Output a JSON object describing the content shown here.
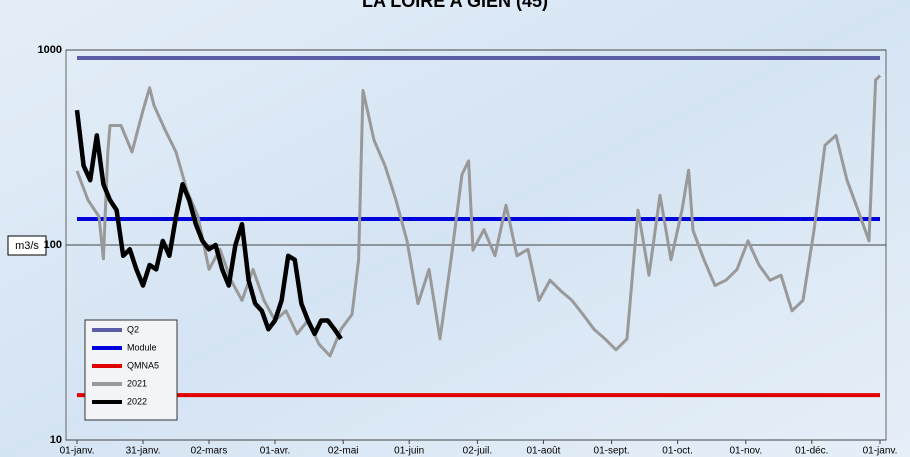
{
  "chart_data": {
    "type": "line",
    "title": "LA LOIRE A GIEN (45)",
    "ylabel": "m3/s",
    "log_y": true,
    "grid": true,
    "legend": "lower left",
    "xlim": [
      0,
      365
    ],
    "ylim": [
      10,
      1000
    ],
    "yticks": [
      10,
      100,
      1000
    ],
    "xticks": [
      {
        "value": 0,
        "label": "01-janv."
      },
      {
        "value": 30,
        "label": "31-janv."
      },
      {
        "value": 60,
        "label": "02-mars"
      },
      {
        "value": 90,
        "label": "01-avr."
      },
      {
        "value": 121,
        "label": "02-mai"
      },
      {
        "value": 151,
        "label": "01-juin"
      },
      {
        "value": 182,
        "label": "02-juil."
      },
      {
        "value": 212,
        "label": "01-août"
      },
      {
        "value": 243,
        "label": "01-sept."
      },
      {
        "value": 273,
        "label": "01-oct."
      },
      {
        "value": 304,
        "label": "01-nov."
      },
      {
        "value": 334,
        "label": "01-déc."
      },
      {
        "value": 365,
        "label": "01-janv."
      }
    ],
    "series": [
      {
        "name": "Q2",
        "color": "#5b5ea6",
        "x": [
          0,
          365
        ],
        "values": [
          910,
          910
        ]
      },
      {
        "name": "Module",
        "color": "#0000dd",
        "x": [
          0,
          365
        ],
        "values": [
          136,
          136
        ]
      },
      {
        "name": "QMNA5",
        "color": "#e00000",
        "x": [
          0,
          365
        ],
        "values": [
          17,
          17
        ]
      },
      {
        "name": "2021",
        "color": "#999999",
        "x": [
          0,
          5,
          10,
          12,
          14,
          15,
          20,
          25,
          30,
          33,
          35,
          40,
          45,
          50,
          55,
          60,
          65,
          70,
          75,
          80,
          85,
          90,
          95,
          100,
          105,
          110,
          115,
          120,
          125,
          128,
          130,
          135,
          140,
          145,
          150,
          155,
          160,
          165,
          170,
          175,
          178,
          180,
          185,
          190,
          195,
          200,
          205,
          210,
          215,
          220,
          225,
          230,
          235,
          240,
          245,
          250,
          255,
          260,
          265,
          270,
          275,
          278,
          280,
          285,
          290,
          295,
          300,
          305,
          310,
          315,
          320,
          325,
          330,
          335,
          340,
          345,
          350,
          355,
          360,
          363,
          365
        ],
        "values": [
          240,
          170,
          140,
          85,
          300,
          410,
          410,
          300,
          490,
          640,
          520,
          390,
          300,
          190,
          140,
          75,
          95,
          66,
          52,
          75,
          52,
          41,
          46,
          35,
          41,
          31,
          27,
          37,
          44,
          84,
          620,
          345,
          255,
          170,
          105,
          50,
          75,
          33,
          84,
          230,
          270,
          94,
          120,
          88,
          160,
          88,
          95,
          52,
          66,
          58,
          52,
          44,
          37,
          33,
          29,
          33,
          151,
          70,
          180,
          84,
          151,
          242,
          119,
          84,
          62,
          66,
          75,
          105,
          79,
          66,
          70,
          46,
          52,
          119,
          325,
          365,
          215,
          151,
          105,
          700,
          740
        ]
      },
      {
        "name": "2022",
        "color": "#000000",
        "x": [
          0,
          3,
          6,
          9,
          12,
          15,
          18,
          21,
          24,
          27,
          30,
          33,
          36,
          39,
          42,
          45,
          48,
          51,
          54,
          57,
          60,
          63,
          66,
          69,
          72,
          75,
          78,
          81,
          84,
          87,
          90,
          93,
          96,
          99,
          102,
          105,
          108,
          111,
          114,
          117,
          120
        ],
        "values": [
          492,
          255,
          215,
          365,
          205,
          170,
          151,
          88,
          95,
          75,
          62,
          79,
          75,
          105,
          88,
          140,
          205,
          170,
          128,
          105,
          95,
          100,
          75,
          62,
          100,
          128,
          66,
          50,
          46,
          37,
          41,
          52,
          88,
          84,
          50,
          41,
          35,
          41,
          41,
          37,
          33
        ]
      }
    ]
  }
}
